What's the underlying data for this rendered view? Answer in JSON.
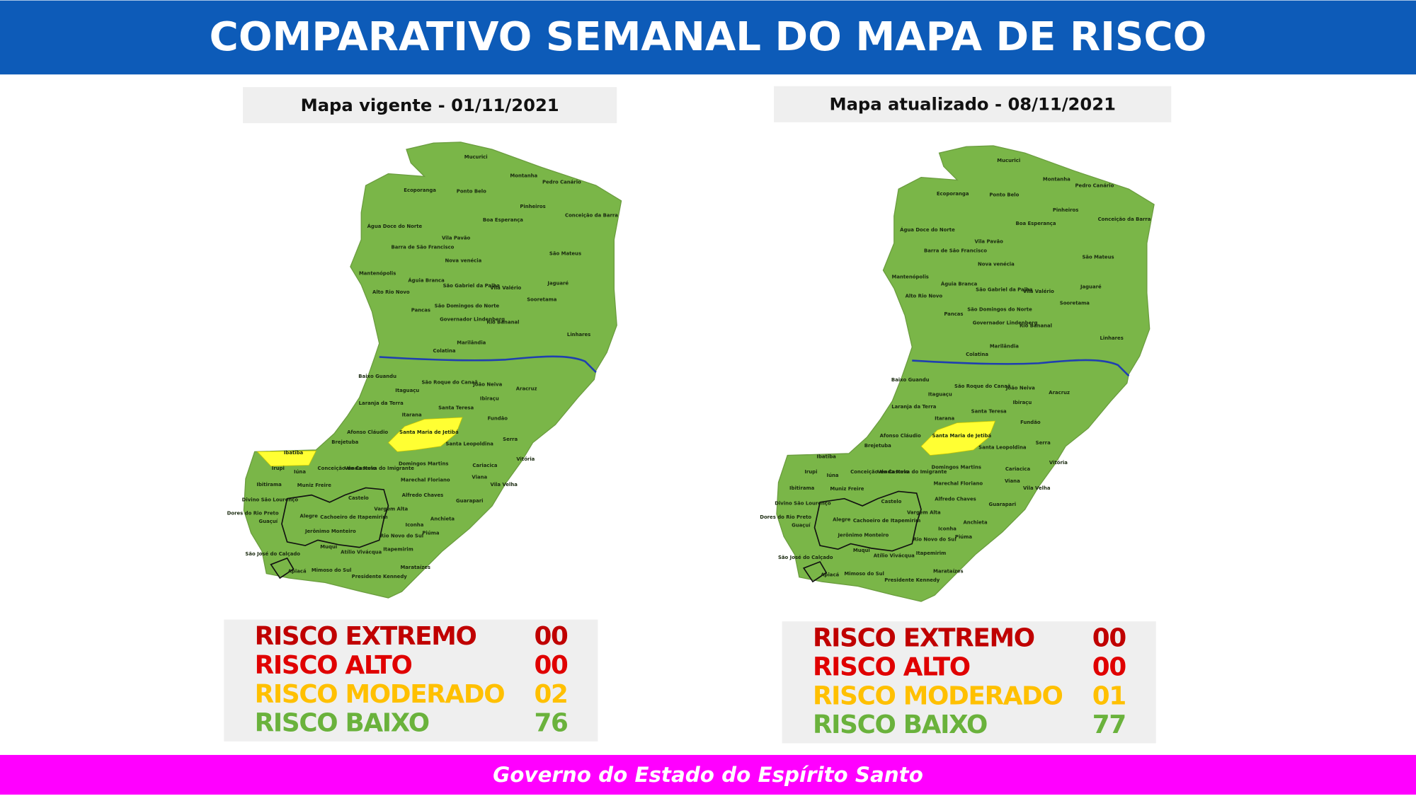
{
  "header": {
    "title": "COMPARATIVO SEMANAL DO MAPA DE RISCO"
  },
  "footer": {
    "text": "Governo do Estado do Espírito Santo"
  },
  "risk_colors": {
    "extremo": "#c00000",
    "alto": "#e00000",
    "moderado": "#ffc000",
    "baixo": "#6ab23c"
  },
  "map_colors": {
    "baixo": "#7ab648",
    "moderado": "#ffff33",
    "river": "#1f3fb0"
  },
  "municipality_labels": [
    "Mucurici",
    "Montanha",
    "Pedro Canário",
    "Ecoporanga",
    "Ponto Belo",
    "Pinheiros",
    "Conceição da Barra",
    "Água Doce do Norte",
    "Boa Esperança",
    "Barra de São Francisco",
    "Vila Pavão",
    "São Mateus",
    "Nova venécia",
    "Mantenópolis",
    "Águia Branca",
    "São Gabriel da Palha",
    "Vila Valério",
    "Jaguaré",
    "Alto Rio Novo",
    "Sooretama",
    "Pancas",
    "São Domingos do Norte",
    "Governador Lindenberg",
    "Rio Bananal",
    "Linhares",
    "Marilândia",
    "Colatina",
    "Baixo Guandu",
    "São Roque do Canaã",
    "João Neiva",
    "Aracruz",
    "Itaguaçu",
    "Ibiraçu",
    "Laranja da Terra",
    "Santa Teresa",
    "Itarana",
    "Fundão",
    "Afonso Cláudio",
    "Santa Maria de Jetibá",
    "Serra",
    "Santa Leopoldina",
    "Brejetuba",
    "Ibatiba",
    "Vitória",
    "Domingos Martins",
    "Cariacica",
    "Conceição do Castelo",
    "Venda Nova do Imigrante",
    "Irupi",
    "Iúna",
    "Marechal Floriano",
    "Viana",
    "Ibitirama",
    "Muniz Freire",
    "Vila Velha",
    "Alfredo Chaves",
    "Divino São Lourenço",
    "Castelo",
    "Guarapari",
    "Dores do Rio Preto",
    "Vargem Alta",
    "Alegre",
    "Cachoeiro de Itapemirim",
    "Anchieta",
    "Guaçuí",
    "Iconha",
    "Jerônimo Monteiro",
    "Piúma",
    "Rio Novo do Sul",
    "Muqui",
    "Atílio Vivácqua",
    "Itapemirim",
    "São José do Calçado",
    "Apiacá",
    "Mimoso do Sul",
    "Marataízes",
    "Presidente Kennedy"
  ],
  "maps": [
    {
      "caption": "Mapa vigente - 01/11/2021",
      "highlighted": [
        "Ibatiba",
        "Santa Maria de Jetibá"
      ],
      "summary": [
        {
          "label": "RISCO EXTREMO",
          "value": "00",
          "level": "extremo"
        },
        {
          "label": "RISCO ALTO",
          "value": "00",
          "level": "alto"
        },
        {
          "label": "RISCO MODERADO",
          "value": "02",
          "level": "moderado"
        },
        {
          "label": "RISCO BAIXO",
          "value": "76",
          "level": "baixo"
        }
      ]
    },
    {
      "caption": "Mapa atualizado - 08/11/2021",
      "highlighted": [
        "Santa Maria de Jetibá"
      ],
      "summary": [
        {
          "label": "RISCO EXTREMO",
          "value": "00",
          "level": "extremo"
        },
        {
          "label": "RISCO ALTO",
          "value": "00",
          "level": "alto"
        },
        {
          "label": "RISCO MODERADO",
          "value": "01",
          "level": "moderado"
        },
        {
          "label": "RISCO BAIXO",
          "value": "77",
          "level": "baixo"
        }
      ]
    }
  ]
}
